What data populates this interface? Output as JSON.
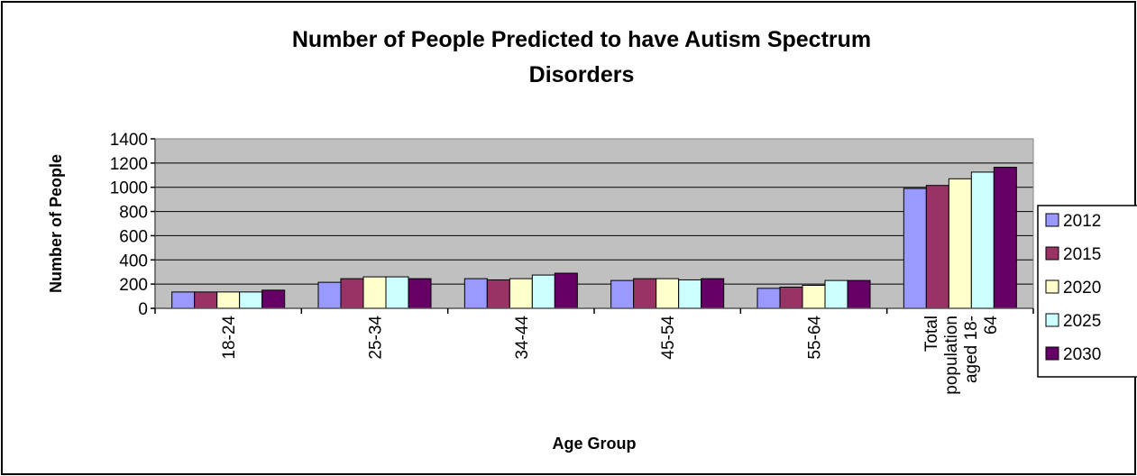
{
  "chart_data": {
    "type": "bar",
    "title": "Number of People Predicted to have Autism Spectrum Disorders",
    "title_lines": [
      "Number of People Predicted to have Autism Spectrum",
      "Disorders"
    ],
    "xlabel": "Age Group",
    "ylabel": "Number of People",
    "categories": [
      "18-24",
      "25-34",
      "34-44",
      "45-54",
      "55-64",
      "Total population aged 18-64"
    ],
    "category_label_lines": [
      [
        "18-24"
      ],
      [
        "25-34"
      ],
      [
        "34-44"
      ],
      [
        "45-54"
      ],
      [
        "55-64"
      ],
      [
        "Total",
        "population",
        "aged 18-",
        "64"
      ]
    ],
    "ylim": [
      0,
      1400
    ],
    "yticks": [
      0,
      200,
      400,
      600,
      800,
      1000,
      1200,
      1400
    ],
    "grid": true,
    "legend_position": "right",
    "plot_background": "#c0c0c0",
    "series": [
      {
        "name": "2012",
        "color": "#9999ff",
        "values": [
          135,
          215,
          245,
          230,
          165,
          990
        ]
      },
      {
        "name": "2015",
        "color": "#993366",
        "values": [
          135,
          245,
          235,
          245,
          175,
          1015
        ]
      },
      {
        "name": "2020",
        "color": "#ffffcc",
        "values": [
          135,
          260,
          245,
          245,
          190,
          1070
        ]
      },
      {
        "name": "2025",
        "color": "#ccffff",
        "values": [
          135,
          260,
          275,
          235,
          230,
          1125
        ]
      },
      {
        "name": "2030",
        "color": "#660066",
        "values": [
          150,
          245,
          290,
          245,
          230,
          1165
        ]
      }
    ]
  }
}
